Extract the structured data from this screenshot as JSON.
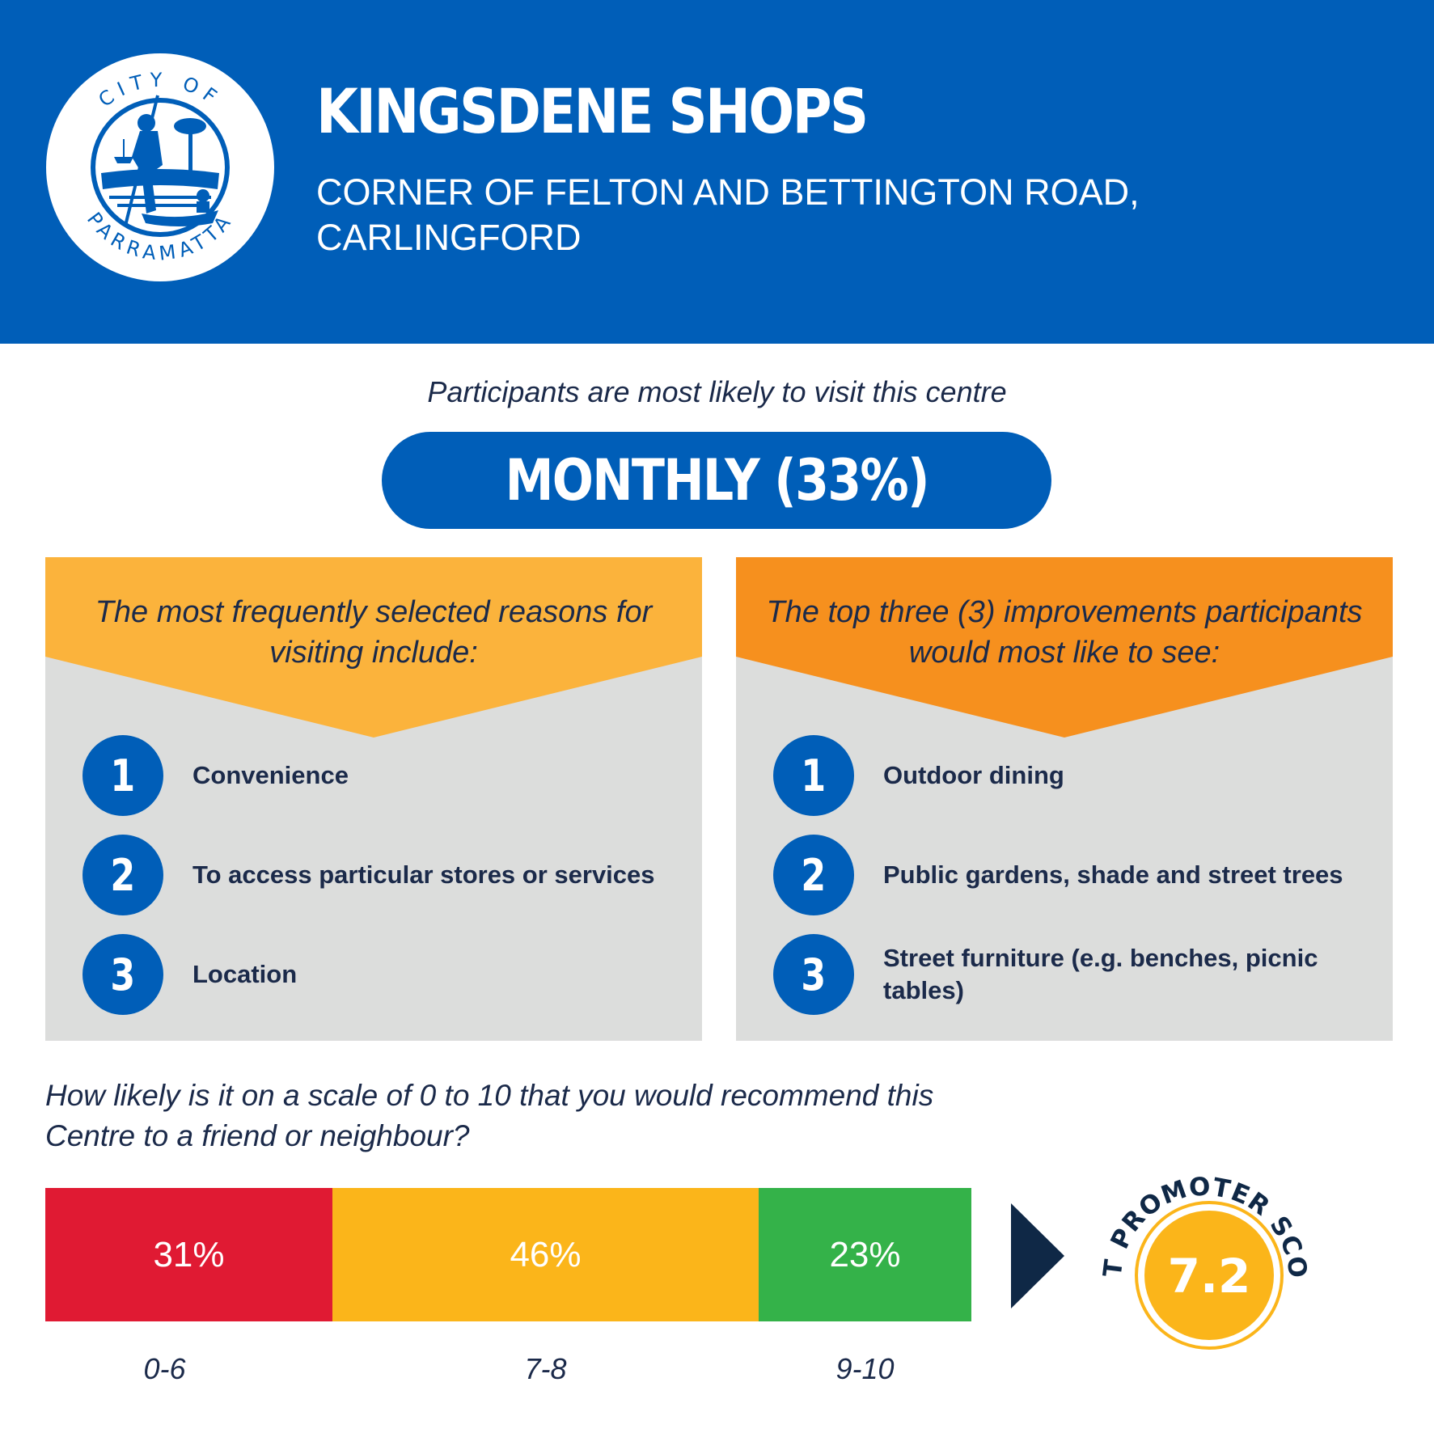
{
  "header": {
    "logo_text_top": "CITY OF",
    "logo_text_bottom": "PARRAMATTA",
    "title": "KINGSDENE SHOPS",
    "address_line1": "CORNER OF FELTON AND BETTINGTON ROAD,",
    "address_line2": "CARLINGFORD",
    "background_color": "#005eb8"
  },
  "visit": {
    "label": "Participants are most likely to visit this centre",
    "frequency": "MONTHLY (33%)"
  },
  "reasons": {
    "title": "The most frequently selected reasons for visiting include:",
    "color": "#fbb33c",
    "items": [
      {
        "rank": "1",
        "text": "Convenience"
      },
      {
        "rank": "2",
        "text": "To access particular stores or services"
      },
      {
        "rank": "3",
        "text": "Location"
      }
    ]
  },
  "improvements": {
    "title": "The top three (3) improvements participants would most like to see:",
    "color": "#f6901e",
    "items": [
      {
        "rank": "1",
        "text": "Outdoor dining"
      },
      {
        "rank": "2",
        "text": "Public gardens, shade and street trees"
      },
      {
        "rank": "3",
        "text": "Street furniture (e.g. benches, picnic tables)"
      }
    ]
  },
  "recommend": {
    "question": "How likely is it on a scale of 0 to 10 that you would recommend this Centre to a friend or neighbour?",
    "segments": [
      {
        "range": "0-6",
        "percent": 31,
        "label": "31%",
        "color": "#e01a33"
      },
      {
        "range": "7-8",
        "percent": 46,
        "label": "46%",
        "color": "#fbb51a"
      },
      {
        "range": "9-10",
        "percent": 23,
        "label": "23%",
        "color": "#34b249"
      }
    ],
    "nps_label": "NET PROMOTER SCORE",
    "nps_value": "7.2"
  }
}
